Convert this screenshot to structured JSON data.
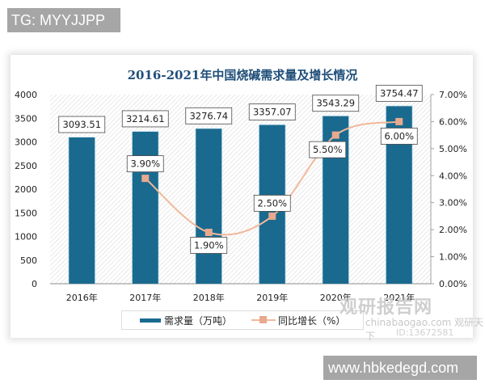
{
  "tags": {
    "top": "TG: MYYJJPP",
    "bottom": "www.hbkedegd.com"
  },
  "watermark": {
    "name": "观研报告网",
    "site": "chinabaogao.com 观研天下",
    "id": "ID:13672581"
  },
  "chart_data": {
    "type": "bar",
    "title": "2016-2021年中国烧碱需求量及增长情况",
    "categories": [
      "2016年",
      "2017年",
      "2018年",
      "2019年",
      "2020年",
      "2021年"
    ],
    "series": [
      {
        "name": "需求量（万吨）",
        "type": "bar",
        "axis": "left",
        "color": "#1a6a8f",
        "values": [
          3093.51,
          3214.61,
          3276.74,
          3357.07,
          3543.29,
          3754.47
        ],
        "labels": [
          "3093.51",
          "3214.61",
          "3276.74",
          "3357.07",
          "3543.29",
          "3754.47"
        ]
      },
      {
        "name": "同比增长（%）",
        "type": "line",
        "axis": "right",
        "color": "#f2b89a",
        "values": [
          null,
          3.9,
          1.9,
          2.5,
          5.5,
          6.0
        ],
        "labels": [
          "",
          "3.90%",
          "1.90%",
          "2.50%",
          "5.50%",
          "6.00%"
        ]
      }
    ],
    "left_axis": {
      "ylim": [
        0,
        4000
      ],
      "ticks": [
        "0",
        "500",
        "1000",
        "1500",
        "2000",
        "2500",
        "3000",
        "3500",
        "4000"
      ]
    },
    "right_axis": {
      "ylim": [
        0,
        7
      ],
      "ticks": [
        "0.00%",
        "1.00%",
        "2.00%",
        "3.00%",
        "4.00%",
        "5.00%",
        "6.00%",
        "7.00%"
      ]
    },
    "xlabel": "",
    "ylabel": "",
    "legend_position": "bottom",
    "grid": false
  },
  "legend": {
    "bar_label": "需求量（万吨）",
    "line_label": "同比增长（%）"
  }
}
